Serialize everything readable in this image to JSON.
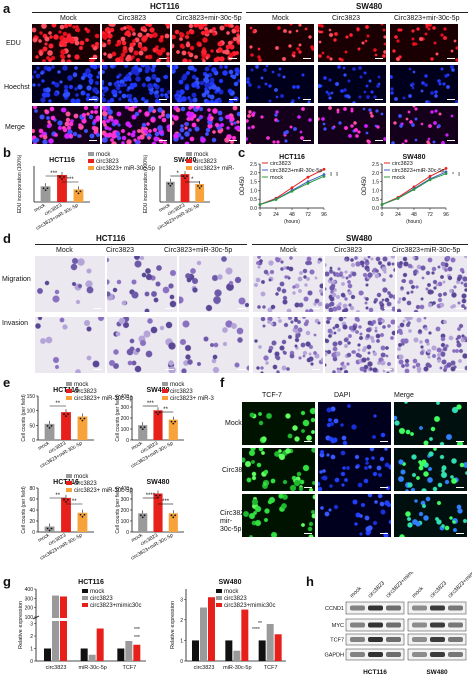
{
  "panel_letters": {
    "a": "a",
    "b": "b",
    "c": "c",
    "d": "d",
    "e": "e",
    "f": "f",
    "g": "g",
    "h": "h"
  },
  "panel_a": {
    "cell_lines": [
      "HCT116",
      "SW480"
    ],
    "groups": [
      "Mock",
      "Circ3823",
      "Circ3823+mir-30c-5p"
    ],
    "rows": [
      "EDU",
      "Hoechst",
      "Merge"
    ]
  },
  "panel_b": {
    "legend": [
      "mock",
      "circ3823",
      "circ3823+ miR-30c-5p"
    ],
    "ylabel": "EDU incorporation (100%)",
    "xticks": [
      "mock",
      "circ3823",
      "circ3823+miR-30c-5p"
    ],
    "charts": [
      {
        "title": "HCT116",
        "sig": [
          "***",
          "***"
        ]
      },
      {
        "title": "SW480",
        "sig": [
          "*",
          "*"
        ]
      }
    ]
  },
  "panel_c": {
    "ylabel": "OD450",
    "xlabel": "(hours)",
    "legend": [
      "circ3823",
      "circ3823+miR-30c-5p",
      "mock"
    ],
    "charts": [
      {
        "title": "HCT116",
        "sig": [
          "**",
          "**"
        ]
      },
      {
        "title": "SW480",
        "sig": [
          "*",
          "**"
        ]
      }
    ]
  },
  "panel_d": {
    "cell_lines": [
      "HCT116",
      "SW480"
    ],
    "groups": [
      "Mock",
      "Circ3823",
      "Circ3823+miR-30c-5p"
    ],
    "rows": [
      "Migration",
      "Invasion"
    ]
  },
  "panel_e": {
    "legend": [
      "mock",
      "circ3823",
      "circ3823+ miR-30c-5p"
    ],
    "ylabel": "Cell counts (per field)",
    "xticks": [
      "mock",
      "circ3823",
      "circ3823+miR-30c-5p"
    ],
    "charts": [
      {
        "title": "HCT116",
        "sig": [
          "**",
          ""
        ]
      },
      {
        "title": "SW480",
        "sig": [
          "***",
          "**"
        ]
      },
      {
        "title": "HCT116",
        "sig": [
          "**",
          "**"
        ]
      },
      {
        "title": "SW480",
        "sig": [
          "****",
          "***"
        ]
      }
    ]
  },
  "panel_f": {
    "columns": [
      "TCF-7",
      "DAPI",
      "Merge"
    ],
    "rows": [
      "Mock",
      "Circ3823",
      "Circ3823+ mir-30c-5p"
    ]
  },
  "panel_g": {
    "ylabel": "Relative expression",
    "legend": [
      "mock",
      "circ3823",
      "circ3823+mimic30c"
    ],
    "xticks": [
      "circ3823",
      "miR-30c-5p",
      "TCF7"
    ],
    "charts": [
      {
        "title": "HCT116",
        "sig": [
          "***",
          "***"
        ]
      },
      {
        "title": "SW480",
        "sig": [
          "****",
          "**"
        ]
      }
    ]
  },
  "panel_h": {
    "lanes": [
      "mock",
      "circ3823",
      "circ3823+mimic30c",
      "mock",
      "circ3823",
      "circ3823+mimic30c"
    ],
    "proteins": [
      "CCND1",
      "MYC",
      "TCF7",
      "GAPDH"
    ],
    "cell_lines": [
      "HCT116",
      "SW480"
    ]
  },
  "chart_data": [
    {
      "type": "bar",
      "title": "HCT116",
      "categories": [
        "mock",
        "circ3823",
        "circ3823+miR-30c-5p"
      ],
      "values": [
        0.35,
        0.6,
        0.28
      ],
      "ylim": [
        0,
        0.8
      ],
      "ylabel": "EDU incorporation (100%)"
    },
    {
      "type": "bar",
      "title": "SW480",
      "categories": [
        "mock",
        "circ3823",
        "circ3823+miR-30c-5p"
      ],
      "values": [
        0.45,
        0.62,
        0.4
      ],
      "ylim": [
        0,
        0.8
      ],
      "ylabel": "EDU incorporation (100%)"
    },
    {
      "type": "line",
      "title": "HCT116",
      "x": [
        0,
        24,
        48,
        72,
        96
      ],
      "xlabel": "(hours)",
      "ylabel": "OD450",
      "ylim": [
        0,
        2.5
      ],
      "yticks": [
        0,
        0.5,
        1.0,
        1.5,
        2.0,
        2.5
      ],
      "series": [
        {
          "name": "circ3823",
          "values": [
            0.2,
            0.55,
            1.15,
            1.75,
            2.2
          ]
        },
        {
          "name": "circ3823+miR-30c-5p",
          "values": [
            0.2,
            0.5,
            1.0,
            1.5,
            1.9
          ]
        },
        {
          "name": "mock",
          "values": [
            0.2,
            0.48,
            0.95,
            1.4,
            1.8
          ]
        }
      ]
    },
    {
      "type": "line",
      "title": "SW480",
      "x": [
        0,
        24,
        48,
        72,
        96
      ],
      "xlabel": "(hours)",
      "ylabel": "OD450",
      "ylim": [
        0,
        2.5
      ],
      "yticks": [
        0,
        0.5,
        1.0,
        1.5,
        2.0,
        2.5
      ],
      "series": [
        {
          "name": "circ3823",
          "values": [
            0.2,
            0.6,
            1.2,
            1.8,
            2.25
          ]
        },
        {
          "name": "circ3823+miR-30c-5p",
          "values": [
            0.2,
            0.55,
            1.1,
            1.65,
            2.05
          ]
        },
        {
          "name": "mock",
          "values": [
            0.2,
            0.55,
            1.05,
            1.6,
            1.95
          ]
        }
      ]
    },
    {
      "type": "bar",
      "title": "HCT116",
      "categories": [
        "mock",
        "circ3823",
        "circ3823+miR-30c-5p"
      ],
      "values": [
        55,
        95,
        80
      ],
      "ylim": [
        0,
        150
      ],
      "yticks": [
        0,
        50,
        100,
        150
      ],
      "ylabel": "Cell counts (per field)"
    },
    {
      "type": "bar",
      "title": "SW480",
      "categories": [
        "mock",
        "circ3823",
        "circ3823+miR-30c-5p"
      ],
      "values": [
        135,
        270,
        185
      ],
      "ylim": [
        0,
        400
      ],
      "yticks": [
        0,
        100,
        200,
        300,
        400
      ],
      "ylabel": "Cell counts (per field)"
    },
    {
      "type": "bar",
      "title": "HCT116",
      "categories": [
        "mock",
        "circ3823",
        "circ3823+miR-30c-5p"
      ],
      "values": [
        10,
        62,
        35
      ],
      "ylim": [
        0,
        80
      ],
      "yticks": [
        0,
        20,
        40,
        60,
        80
      ],
      "ylabel": "Cell counts (per field)"
    },
    {
      "type": "bar",
      "title": "SW480",
      "categories": [
        "mock",
        "circ3823",
        "circ3823+miR-30c-5p"
      ],
      "values": [
        170,
        350,
        170
      ],
      "ylim": [
        0,
        400
      ],
      "yticks": [
        0,
        100,
        200,
        300,
        400
      ],
      "ylabel": "Cell counts (per field)"
    },
    {
      "type": "bar",
      "title": "HCT116",
      "categories": [
        "circ3823",
        "miR-30c-5p",
        "TCF7"
      ],
      "series": [
        {
          "name": "mock",
          "values": [
            1,
            1,
            1
          ]
        },
        {
          "name": "circ3823",
          "values": [
            330,
            0.5,
            1.6
          ]
        },
        {
          "name": "circ3823+mimic30c",
          "values": [
            320,
            2.6,
            1.3
          ]
        }
      ],
      "yticks": [
        0,
        1,
        2,
        3,
        100,
        200,
        300,
        400
      ],
      "ylabel": "Relative expression"
    },
    {
      "type": "bar",
      "title": "SW480",
      "categories": [
        "circ3823",
        "miR-30c-5p",
        "TCF7"
      ],
      "series": [
        {
          "name": "mock",
          "values": [
            1,
            1,
            1
          ]
        },
        {
          "name": "circ3823",
          "values": [
            2.6,
            0.5,
            1.8
          ]
        },
        {
          "name": "circ3823+mimic30c",
          "values": [
            3.1,
            2.5,
            1.3
          ]
        }
      ],
      "ylim": [
        0,
        3.5
      ],
      "yticks": [
        0,
        1,
        2,
        3
      ],
      "ylabel": "Relative expression"
    }
  ]
}
